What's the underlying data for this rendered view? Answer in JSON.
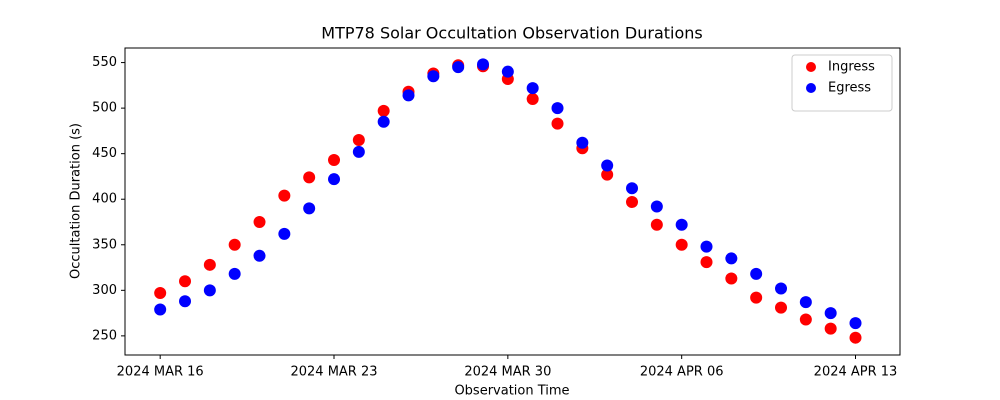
{
  "chart_data": {
    "type": "scatter",
    "title": "MTP78 Solar Occultation Observation Durations",
    "x_label": "Observation Time",
    "y_label": "Occultation Duration (s)",
    "x": [
      "2024-03-16",
      "2024-03-17",
      "2024-03-18",
      "2024-03-19",
      "2024-03-20",
      "2024-03-21",
      "2024-03-22",
      "2024-03-23",
      "2024-03-24",
      "2024-03-25",
      "2024-03-26",
      "2024-03-27",
      "2024-03-28",
      "2024-03-29",
      "2024-03-30",
      "2024-03-31",
      "2024-04-01",
      "2024-04-02",
      "2024-04-03",
      "2024-04-04",
      "2024-04-05",
      "2024-04-06",
      "2024-04-07",
      "2024-04-08",
      "2024-04-09",
      "2024-04-10",
      "2024-04-11",
      "2024-04-12",
      "2024-04-13"
    ],
    "series": [
      {
        "name": "Ingress",
        "color": "#ff0000",
        "values": [
          297,
          310,
          328,
          350,
          375,
          404,
          424,
          443,
          465,
          497,
          518,
          538,
          547,
          546,
          532,
          510,
          483,
          456,
          427,
          397,
          372,
          350,
          331,
          313,
          292,
          281,
          268,
          258,
          248
        ]
      },
      {
        "name": "Egress",
        "color": "#0000ff",
        "values": [
          279,
          288,
          300,
          318,
          338,
          362,
          390,
          422,
          452,
          485,
          514,
          535,
          545,
          548,
          540,
          522,
          500,
          462,
          437,
          412,
          392,
          372,
          348,
          335,
          318,
          302,
          287,
          275,
          264
        ]
      }
    ],
    "xlim": [
      "2024-03-14T14:00",
      "2024-04-14T19:00"
    ],
    "xticks": [
      {
        "value": "2024-03-16",
        "label": "2024 MAR 16"
      },
      {
        "value": "2024-03-23",
        "label": "2024 MAR 23"
      },
      {
        "value": "2024-03-30",
        "label": "2024 MAR 30"
      },
      {
        "value": "2024-04-06",
        "label": "2024 APR 06"
      },
      {
        "value": "2024-04-13",
        "label": "2024 APR 13"
      }
    ],
    "ylim": [
      229,
      566
    ],
    "yticks": [
      250,
      300,
      350,
      400,
      450,
      500,
      550
    ],
    "legend": "upper right",
    "grid": false
  }
}
